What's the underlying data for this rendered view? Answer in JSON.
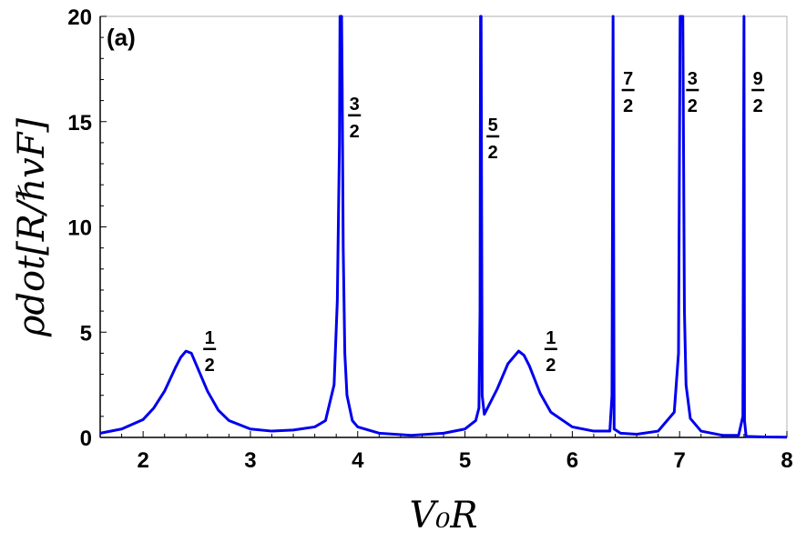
{
  "chart_data": {
    "type": "line",
    "panel_label": "(a)",
    "xlabel": "V₀R",
    "ylabel": "ρdot[R/ℏvF]",
    "xlim": [
      1.6,
      8.0
    ],
    "ylim": [
      0,
      20
    ],
    "xticks": [
      2,
      3,
      4,
      5,
      6,
      7,
      8
    ],
    "yticks": [
      0,
      5,
      10,
      15,
      20
    ],
    "line_color": "#0000ee",
    "series": [
      {
        "x": [
          1.6,
          1.8,
          2.0,
          2.1,
          2.2,
          2.3,
          2.35,
          2.4,
          2.45,
          2.5,
          2.6,
          2.7,
          2.8,
          3.0,
          3.2,
          3.4,
          3.6,
          3.7,
          3.78,
          3.81,
          3.83,
          3.835,
          3.85,
          3.855,
          3.865,
          3.88,
          3.9,
          3.95,
          4.0,
          4.2,
          4.5,
          4.8,
          5.0,
          5.1,
          5.13,
          5.14,
          5.145,
          5.15,
          5.16,
          5.18,
          5.2,
          5.3,
          5.4,
          5.5,
          5.55,
          5.6,
          5.7,
          5.8,
          6.0,
          6.2,
          6.35,
          6.37,
          6.38,
          6.39,
          6.45,
          6.6,
          6.8,
          6.95,
          6.99,
          7.005,
          7.01,
          7.03,
          7.045,
          7.06,
          7.1,
          7.2,
          7.4,
          7.55,
          7.59,
          7.6,
          7.605,
          7.62,
          7.8,
          8.0
        ],
        "y": [
          0.2,
          0.4,
          0.85,
          1.4,
          2.2,
          3.3,
          3.8,
          4.1,
          4.0,
          3.4,
          2.2,
          1.3,
          0.8,
          0.4,
          0.3,
          0.35,
          0.5,
          0.8,
          2.5,
          6.5,
          14.0,
          20.0,
          20.0,
          17.0,
          9.0,
          4.0,
          2.0,
          0.8,
          0.5,
          0.2,
          0.1,
          0.2,
          0.4,
          0.8,
          1.4,
          6.0,
          20.0,
          20.0,
          2.0,
          1.1,
          1.3,
          2.3,
          3.5,
          4.1,
          3.9,
          3.4,
          2.1,
          1.2,
          0.5,
          0.3,
          0.3,
          2.0,
          20.0,
          0.4,
          0.2,
          0.15,
          0.3,
          1.2,
          4.0,
          20.0,
          20.0,
          20.0,
          6.0,
          2.5,
          0.9,
          0.3,
          0.1,
          0.1,
          1.0,
          20.0,
          0.8,
          0.05,
          0.02,
          0.01
        ]
      }
    ],
    "peak_labels": [
      {
        "x": 2.62,
        "y": 4.2,
        "num": "1",
        "den": "2"
      },
      {
        "x": 3.97,
        "y": 15.3,
        "num": "3",
        "den": "2"
      },
      {
        "x": 5.26,
        "y": 14.3,
        "num": "5",
        "den": "2"
      },
      {
        "x": 5.8,
        "y": 4.2,
        "num": "1",
        "den": "2"
      },
      {
        "x": 6.52,
        "y": 16.5,
        "num": "7",
        "den": "2"
      },
      {
        "x": 7.12,
        "y": 16.5,
        "num": "3",
        "den": "2"
      },
      {
        "x": 7.73,
        "y": 16.5,
        "num": "9",
        "den": "2"
      }
    ]
  }
}
